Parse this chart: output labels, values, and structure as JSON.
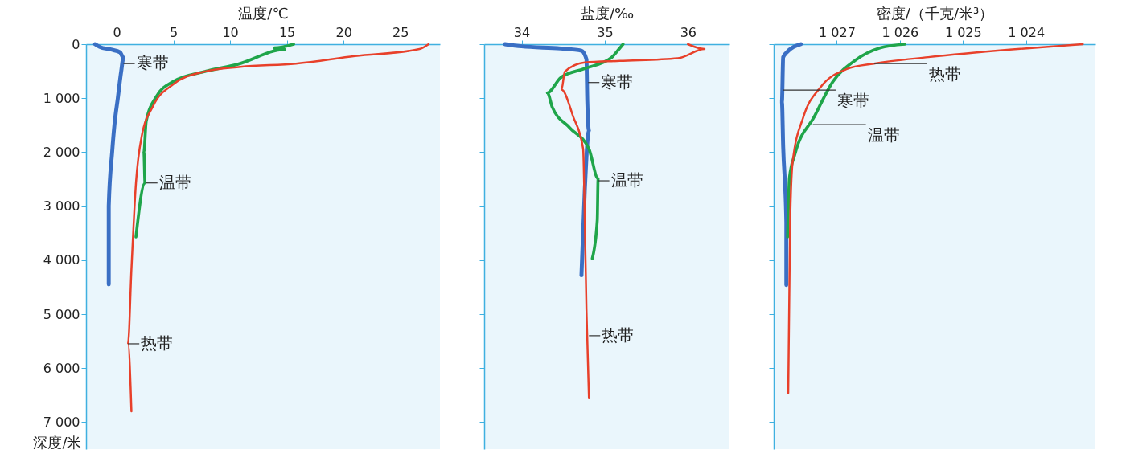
{
  "chart_data": [
    {
      "type": "line",
      "orientation": "horizontal",
      "xlabel": "温度/℃",
      "ylabel": "深度/米",
      "xlim": [
        -2.7,
        28.5
      ],
      "xticks": [
        0,
        5,
        10,
        15,
        20,
        25
      ],
      "ylim": [
        7500,
        0
      ],
      "yticks": [
        0,
        {
          "value": 1000,
          "label": "1 000"
        },
        {
          "value": 2000,
          "label": "2 000"
        },
        {
          "value": 3000,
          "label": "3 000"
        },
        {
          "value": 4000,
          "label": "4 000"
        },
        {
          "value": 5000,
          "label": "5 000"
        },
        {
          "value": 6000,
          "label": "6 000"
        },
        {
          "value": 7000,
          "label": "7 000"
        }
      ],
      "grid": false,
      "series": [
        {
          "color": "#3a6fc4",
          "x": [
            0,
            50,
            100,
            150,
            250,
            500,
            1000,
            1500,
            2000,
            3000,
            4450
          ],
          "values": [
            -1.9,
            -1.5,
            -0.5,
            0.3,
            0.6,
            0.4,
            0.1,
            -0.2,
            -0.4,
            -0.7,
            -0.7
          ]
        },
        {
          "color": "#1fa54a",
          "x": [
            0,
            70,
            100,
            370,
            510,
            690,
            970,
            1430,
            2000,
            2570,
            3570
          ],
          "values": [
            15.6,
            13.9,
            14.8,
            10.7,
            7.7,
            5,
            3.5,
            2.6,
            2.4,
            2.5,
            1.7
          ]
        },
        {
          "color": "#e8402a",
          "x": [
            0,
            90,
            220,
            360,
            420,
            510,
            740,
            1150,
            1710,
            2570,
            4170,
            5540,
            6800
          ],
          "values": [
            27.5,
            26.7,
            21,
            15.8,
            10.9,
            7.7,
            5,
            3.2,
            2.2,
            1.7,
            1.3,
            1.0,
            1.3
          ]
        }
      ],
      "annotations": [
        {
          "text": "寒带",
          "x": 0.6,
          "y": 360
        },
        {
          "text": "温带",
          "x": 2.6,
          "y": 2570
        },
        {
          "text": "热带",
          "x": 1.0,
          "y": 5550
        }
      ]
    },
    {
      "type": "line",
      "orientation": "horizontal",
      "xlabel": "盐度/‰",
      "xlim": [
        33.55,
        36.5
      ],
      "xticks": [
        34,
        35,
        36
      ],
      "ylim": [
        7500,
        0
      ],
      "yticks": [
        0,
        1000,
        2000,
        3000,
        4000,
        5000,
        6000,
        7000
      ],
      "tick_labels": "x",
      "grid": false,
      "series": [
        {
          "color": "#3a6fc4",
          "x": [
            0,
            40,
            80,
            120,
            280,
            1060,
            1600,
            2700,
            4280
          ],
          "values": [
            33.8,
            34.0,
            34.47,
            34.72,
            34.78,
            34.79,
            34.81,
            34.76,
            34.72
          ]
        },
        {
          "color": "#1fa54a",
          "x": [
            0,
            130,
            250,
            450,
            620,
            900,
            1170,
            1550,
            1940,
            2490,
            3260,
            3970
          ],
          "values": [
            35.22,
            35.15,
            35.08,
            34.76,
            34.47,
            34.31,
            34.37,
            34.58,
            34.81,
            34.92,
            34.91,
            34.85
          ]
        },
        {
          "color": "#e8402a",
          "x": [
            0,
            90,
            260,
            310,
            340,
            510,
            840,
            1340,
            1940,
            3260,
            4910,
            6560
          ],
          "values": [
            36.0,
            36.2,
            35.88,
            35.18,
            34.76,
            34.52,
            34.48,
            34.62,
            34.74,
            34.76,
            34.78,
            34.81
          ]
        }
      ],
      "annotations": [
        {
          "text": "寒带",
          "x": 34.8,
          "y": 710
        },
        {
          "text": "温带",
          "x": 34.92,
          "y": 2530
        },
        {
          "text": "热带",
          "x": 34.81,
          "y": 5400
        }
      ]
    },
    {
      "type": "line",
      "orientation": "horizontal",
      "xlabel": "密度/（千克/米³）",
      "xlim": [
        1028,
        1022.9
      ],
      "xticks": [
        {
          "value": 1027,
          "label": "1 027"
        },
        {
          "value": 1026,
          "label": "1 026"
        },
        {
          "value": 1025,
          "label": "1 025"
        },
        {
          "value": 1024,
          "label": "1 024"
        }
      ],
      "ylim": [
        7500,
        0
      ],
      "yticks": [
        0,
        1000,
        2000,
        3000,
        4000,
        5000,
        6000,
        7000
      ],
      "tick_labels": "x",
      "grid": false,
      "series": [
        {
          "color": "#3a6fc4",
          "x": [
            0,
            160,
            240,
            1070,
            1900,
            3300,
            4460
          ],
          "values": [
            1027.57,
            1027.8,
            1027.85,
            1027.87,
            1027.85,
            1027.8,
            1027.8
          ]
        },
        {
          "color": "#1fa54a",
          "x": [
            0,
            70,
            300,
            690,
            1350,
            2020,
            2470,
            3570
          ],
          "values": [
            1025.92,
            1026.32,
            1026.71,
            1027.06,
            1027.36,
            1027.66,
            1027.75,
            1027.78
          ]
        },
        {
          "color": "#e8402a",
          "x": [
            0,
            100,
            240,
            360,
            460,
            800,
            1350,
            2180,
            3300,
            6460
          ],
          "values": [
            1023.1,
            1024.26,
            1025.55,
            1026.41,
            1026.84,
            1027.26,
            1027.53,
            1027.7,
            1027.74,
            1027.77
          ]
        }
      ],
      "annotations": [
        {
          "text": "寒带",
          "x": 1027.86,
          "y": 850
        },
        {
          "text": "温带",
          "x": 1027.38,
          "y": 1490
        },
        {
          "text": "热带",
          "x": 1026.41,
          "y": 360
        }
      ]
    }
  ]
}
